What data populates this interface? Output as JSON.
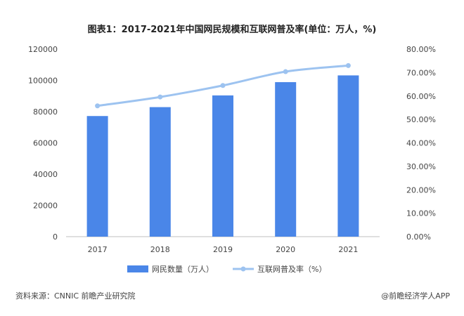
{
  "chart_data": {
    "type": "bar",
    "title": "图表1：2017-2021年中国网民规模和互联网普及率(单位：万人，%)",
    "categories": [
      "2017",
      "2018",
      "2019",
      "2020",
      "2021"
    ],
    "series": [
      {
        "name": "网民数量（万人）",
        "type": "bar",
        "axis": "left",
        "color": "#4a86e8",
        "values": [
          77200,
          82900,
          90400,
          98900,
          103200
        ]
      },
      {
        "name": "互联网普及率（%）",
        "type": "line",
        "axis": "right",
        "color": "#9dc3f0",
        "values": [
          55.8,
          59.6,
          64.5,
          70.4,
          73.0
        ]
      }
    ],
    "y_left": {
      "ylim": [
        0,
        120000
      ],
      "ticks": [
        "0",
        "20000",
        "40000",
        "60000",
        "80000",
        "100000",
        "120000"
      ]
    },
    "y_right": {
      "ylim": [
        0,
        80
      ],
      "ticks": [
        "0.00%",
        "10.00%",
        "20.00%",
        "30.00%",
        "40.00%",
        "50.00%",
        "60.00%",
        "70.00%",
        "80.00%"
      ]
    },
    "grid": false,
    "legend_position": "bottom",
    "source": "资料来源：CNNIC 前瞻产业研究院",
    "brand": "@前瞻经济学人APP"
  }
}
